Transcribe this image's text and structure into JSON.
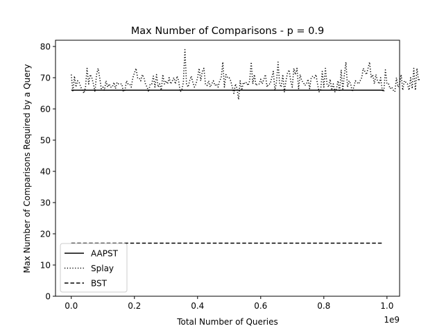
{
  "chart_data": {
    "type": "line",
    "title": "Max Number of Comparisons - p = 0.9",
    "xlabel": "Total Number of Queries",
    "ylabel": "Max Number of Comparisons Required by a Query",
    "x_offset_label": "1e9",
    "xlim": [
      -0.05,
      1.04
    ],
    "ylim": [
      0,
      82
    ],
    "x_ticks": [
      0.0,
      0.2,
      0.4,
      0.6,
      0.8,
      1.0
    ],
    "x_tick_labels": [
      "0.0",
      "0.2",
      "0.4",
      "0.6",
      "0.8",
      "1.0"
    ],
    "y_ticks": [
      0,
      10,
      20,
      30,
      40,
      50,
      60,
      70,
      80
    ],
    "y_tick_labels": [
      "0",
      "10",
      "20",
      "30",
      "40",
      "50",
      "60",
      "70",
      "80"
    ],
    "grid": false,
    "legend_position": "lower-left",
    "x_start": 0.0,
    "x_step": 0.005,
    "series": [
      {
        "name": "AAPST",
        "line_style": "solid",
        "color": "#000000",
        "values": [
          66,
          66,
          66,
          66,
          66,
          66,
          66,
          66,
          66,
          66,
          66,
          66,
          66,
          66,
          66,
          66,
          66,
          66,
          66,
          66,
          66,
          66,
          66,
          66,
          66,
          66,
          66,
          66,
          66,
          66,
          66,
          66,
          66,
          66,
          66,
          66,
          66,
          66,
          66,
          66,
          66,
          66,
          66,
          66,
          66,
          66,
          66,
          66,
          66,
          66,
          66,
          66,
          66,
          66,
          66,
          66,
          66,
          66,
          66,
          66,
          66,
          66,
          66,
          66,
          66,
          66,
          66,
          66,
          66,
          66,
          66,
          66,
          66,
          66,
          66,
          66,
          66,
          66,
          66,
          66,
          66,
          66,
          66,
          66,
          66,
          66,
          66,
          66,
          66,
          66,
          66,
          66,
          66,
          66,
          66,
          66,
          66,
          66,
          66,
          66,
          66,
          66,
          66,
          66,
          66,
          66,
          66,
          66,
          66,
          66,
          66,
          66,
          66,
          66,
          66,
          66,
          66,
          66,
          66,
          66,
          66,
          66,
          66,
          66,
          66,
          66,
          66,
          66,
          66,
          66,
          66,
          66,
          66,
          66,
          66,
          66,
          66,
          66,
          66,
          66,
          66,
          66,
          66,
          66,
          66,
          66,
          66,
          66,
          66,
          66,
          66,
          66,
          66,
          66,
          66,
          66,
          66,
          66,
          66,
          66,
          66,
          66,
          66,
          66,
          66,
          66,
          66,
          66,
          66,
          66,
          66,
          66,
          66,
          66,
          66,
          66,
          66,
          66,
          66,
          66,
          66,
          66,
          66,
          66,
          66,
          66,
          66,
          66,
          66,
          66,
          66,
          66,
          66,
          66,
          66,
          66,
          66,
          66,
          66
        ]
      },
      {
        "name": "Splay",
        "line_style": "dotted",
        "color": "#000000",
        "values": [
          71,
          65.5,
          70.5,
          67,
          69,
          68.5,
          67,
          66,
          65,
          67,
          73,
          68,
          71,
          70,
          68,
          65.5,
          71,
          73,
          70,
          66.5,
          67,
          66,
          69,
          67,
          68,
          67,
          67,
          68.5,
          66.5,
          68.5,
          68,
          68,
          68,
          65.5,
          66,
          69,
          68,
          68,
          67,
          70,
          71.5,
          73,
          70,
          70,
          69,
          71,
          70,
          68,
          67,
          65.5,
          68,
          68,
          70.5,
          67,
          71,
          67,
          68,
          66,
          71,
          68,
          69,
          68,
          70,
          68,
          69,
          70,
          68,
          70.5,
          69,
          65.5,
          66,
          68.5,
          79,
          68,
          67,
          69,
          70.5,
          68.5,
          67,
          68,
          70,
          73,
          69,
          72,
          73,
          68,
          67.5,
          69,
          67,
          68,
          69,
          67.5,
          68,
          67,
          69,
          70,
          75,
          67,
          71,
          70,
          70,
          69,
          67,
          65,
          68,
          66.5,
          63,
          69,
          66,
          68.5,
          68,
          68.5,
          67.5,
          69,
          75,
          68,
          71,
          67.5,
          68,
          68,
          69.5,
          68,
          69.5,
          71,
          67,
          68,
          68,
          70,
          72,
          66,
          68.5,
          75,
          68,
          67,
          71,
          65.5,
          69,
          71.5,
          72.5,
          69,
          67,
          73,
          71,
          73,
          66.5,
          71,
          69,
          68.5,
          67.5,
          68,
          69.5,
          66.5,
          70,
          70.5,
          70,
          71,
          68,
          65.5,
          66,
          72,
          67,
          73,
          68,
          67,
          69.5,
          66,
          68,
          65.5,
          66.5,
          69,
          65.5,
          72.5,
          66,
          71,
          75,
          67,
          69,
          68,
          65.5,
          67,
          69,
          68.5,
          68,
          69,
          70,
          73,
          72,
          71,
          73,
          75,
          70,
          71,
          68,
          71,
          69,
          68,
          70,
          66,
          65.5,
          72.5,
          68,
          68,
          66.5,
          67,
          66,
          65.5,
          70,
          67,
          68,
          71,
          66,
          69,
          68.5,
          68,
          66,
          70,
          66.5,
          73,
          66,
          73,
          69,
          70
        ]
      },
      {
        "name": "BST",
        "line_style": "dashed",
        "color": "#000000",
        "values": [
          17,
          17,
          17,
          17,
          17,
          17,
          17,
          17,
          17,
          17,
          17,
          17,
          17,
          17,
          17,
          17,
          17,
          17,
          17,
          17,
          17,
          17,
          17,
          17,
          17,
          17,
          17,
          17,
          17,
          17,
          17,
          17,
          17,
          17,
          17,
          17,
          17,
          17,
          17,
          17,
          17,
          17,
          17,
          17,
          17,
          17,
          17,
          17,
          17,
          17,
          17,
          17,
          17,
          17,
          17,
          17,
          17,
          17,
          17,
          17,
          17,
          17,
          17,
          17,
          17,
          17,
          17,
          17,
          17,
          17,
          17,
          17,
          17,
          17,
          17,
          17,
          17,
          17,
          17,
          17,
          17,
          17,
          17,
          17,
          17,
          17,
          17,
          17,
          17,
          17,
          17,
          17,
          17,
          17,
          17,
          17,
          17,
          17,
          17,
          17,
          17,
          17,
          17,
          17,
          17,
          17,
          17,
          17,
          17,
          17,
          17,
          17,
          17,
          17,
          17,
          17,
          17,
          17,
          17,
          17,
          17,
          17,
          17,
          17,
          17,
          17,
          17,
          17,
          17,
          17,
          17,
          17,
          17,
          17,
          17,
          17,
          17,
          17,
          17,
          17,
          17,
          17,
          17,
          17,
          17,
          17,
          17,
          17,
          17,
          17,
          17,
          17,
          17,
          17,
          17,
          17,
          17,
          17,
          17,
          17,
          17,
          17,
          17,
          17,
          17,
          17,
          17,
          17,
          17,
          17,
          17,
          17,
          17,
          17,
          17,
          17,
          17,
          17,
          17,
          17,
          17,
          17,
          17,
          17,
          17,
          17,
          17,
          17,
          17,
          17,
          17,
          17,
          17,
          17,
          17,
          17,
          17,
          17,
          17
        ]
      }
    ]
  }
}
